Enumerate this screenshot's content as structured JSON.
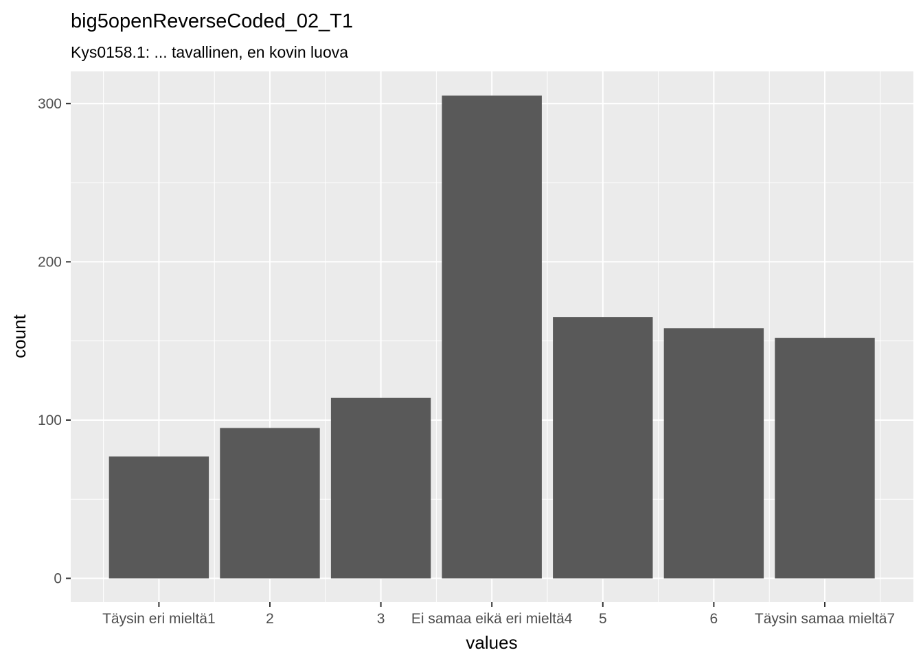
{
  "chart_data": {
    "type": "bar",
    "title": "big5openReverseCoded_02_T1",
    "subtitle": "Kys0158.1: ... tavallinen, en kovin luova",
    "xlabel": "values",
    "ylabel": "count",
    "categories": [
      "Täysin eri mieltä1",
      "2",
      "3",
      "Ei samaa eikä eri mieltä4",
      "5",
      "6",
      "Täysin samaa mieltä7"
    ],
    "values": [
      77,
      95,
      114,
      305,
      165,
      158,
      152
    ],
    "ylim": [
      0,
      320
    ],
    "yticks": [
      0,
      100,
      200,
      300
    ],
    "ytick_labels": [
      "0",
      "100",
      "200",
      "300"
    ],
    "grid": true,
    "colors": {
      "bar": "#595959",
      "panel": "#EBEBEB",
      "grid": "#FFFFFF",
      "tick_text": "#4D4D4D"
    }
  }
}
